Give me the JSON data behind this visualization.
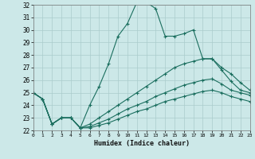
{
  "xlabel": "Humidex (Indice chaleur)",
  "bg_color": "#cce8e8",
  "line_color": "#1a6e5e",
  "grid_color": "#aacccc",
  "xlim": [
    0,
    23
  ],
  "ylim": [
    22,
    32
  ],
  "xtick_vals": [
    0,
    1,
    2,
    3,
    4,
    5,
    6,
    7,
    8,
    9,
    10,
    11,
    12,
    13,
    14,
    15,
    16,
    17,
    18,
    19,
    20,
    21,
    22,
    23
  ],
  "ytick_vals": [
    22,
    23,
    24,
    25,
    26,
    27,
    28,
    29,
    30,
    31,
    32
  ],
  "series": [
    {
      "x": [
        0,
        1,
        2,
        3,
        4,
        5,
        6,
        7,
        8,
        9,
        10,
        11,
        12,
        13,
        14,
        15,
        16,
        17,
        18,
        19,
        20,
        21,
        22,
        23
      ],
      "y": [
        25.0,
        24.5,
        22.5,
        23.0,
        23.0,
        22.2,
        24.0,
        25.5,
        27.3,
        29.5,
        30.5,
        32.2,
        32.2,
        31.7,
        29.5,
        29.5,
        29.7,
        30.0,
        27.7,
        27.7,
        26.8,
        25.9,
        25.2,
        25.0
      ]
    },
    {
      "x": [
        0,
        1,
        2,
        3,
        4,
        5,
        6,
        7,
        8,
        9,
        10,
        11,
        12,
        13,
        14,
        15,
        16,
        17,
        18,
        19,
        20,
        21,
        22,
        23
      ],
      "y": [
        25.0,
        24.5,
        22.5,
        23.0,
        23.0,
        22.2,
        22.5,
        23.0,
        23.5,
        24.0,
        24.5,
        25.0,
        25.5,
        26.0,
        26.5,
        27.0,
        27.3,
        27.5,
        27.7,
        27.7,
        27.0,
        26.5,
        25.8,
        25.2
      ]
    },
    {
      "x": [
        0,
        1,
        2,
        3,
        4,
        5,
        6,
        7,
        8,
        9,
        10,
        11,
        12,
        13,
        14,
        15,
        16,
        17,
        18,
        19,
        20,
        21,
        22,
        23
      ],
      "y": [
        25.0,
        24.5,
        22.5,
        23.0,
        23.0,
        22.2,
        22.3,
        22.6,
        22.9,
        23.3,
        23.7,
        24.0,
        24.3,
        24.7,
        25.0,
        25.3,
        25.6,
        25.8,
        26.0,
        26.1,
        25.7,
        25.2,
        25.0,
        24.8
      ]
    },
    {
      "x": [
        0,
        1,
        2,
        3,
        4,
        5,
        6,
        7,
        8,
        9,
        10,
        11,
        12,
        13,
        14,
        15,
        16,
        17,
        18,
        19,
        20,
        21,
        22,
        23
      ],
      "y": [
        25.0,
        24.5,
        22.5,
        23.0,
        23.0,
        22.2,
        22.2,
        22.4,
        22.6,
        22.9,
        23.2,
        23.5,
        23.7,
        24.0,
        24.3,
        24.5,
        24.7,
        24.9,
        25.1,
        25.2,
        25.0,
        24.7,
        24.5,
        24.3
      ]
    }
  ]
}
